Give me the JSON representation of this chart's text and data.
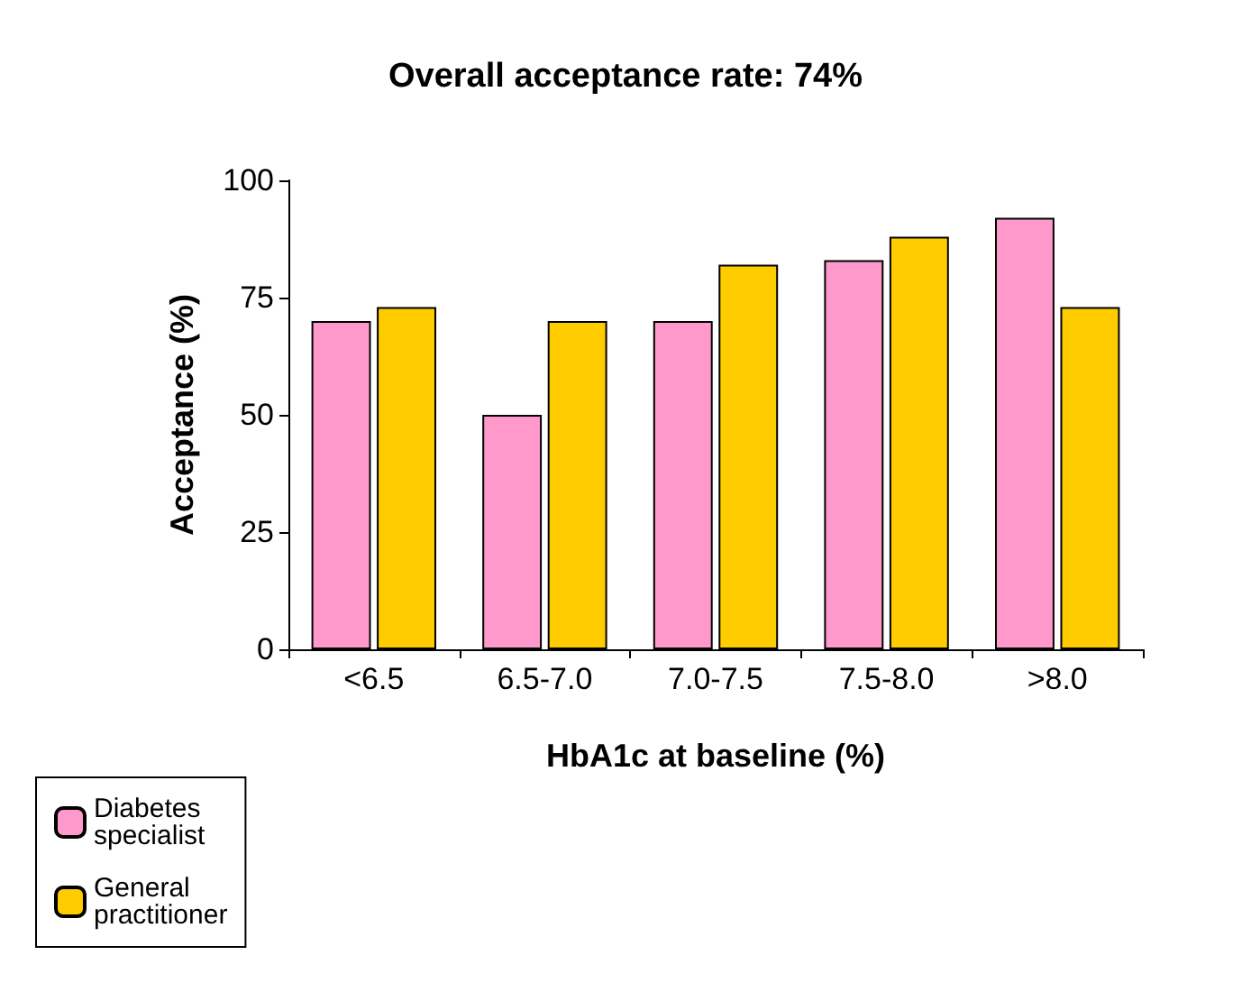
{
  "chart_data": {
    "type": "bar",
    "title": "Overall acceptance rate: 74%",
    "xlabel": "HbA1c at baseline (%)",
    "ylabel": "Acceptance (%)",
    "categories": [
      "<6.5",
      "6.5-7.0",
      "7.0-7.5",
      "7.5-8.0",
      ">8.0"
    ],
    "series": [
      {
        "name": "Diabetes specialist",
        "color": "#ff99cc",
        "values": [
          70,
          50,
          70,
          83,
          92
        ]
      },
      {
        "name": "General practitioner",
        "color": "#ffcc00",
        "values": [
          73,
          70,
          82,
          88,
          73
        ]
      }
    ],
    "ylim": [
      0,
      100
    ],
    "yticks": [
      0,
      25,
      50,
      75,
      100
    ],
    "grid": false,
    "legend": "bottom left"
  }
}
